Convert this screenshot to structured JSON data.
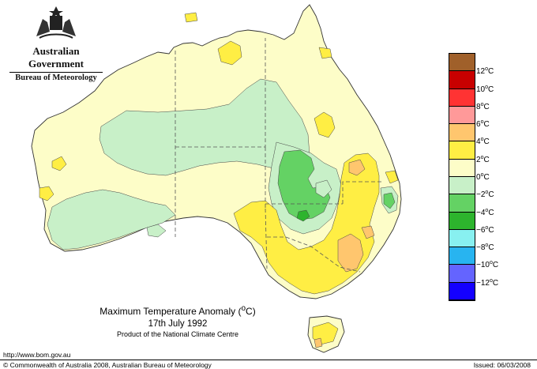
{
  "header": {
    "government": "Australian Government",
    "agency": "Bureau of Meteorology"
  },
  "title": {
    "main": "Maximum Temperature Anomaly (",
    "unit": "o",
    "unit_suffix": "C)",
    "date": "17th July 1992",
    "product": "Product of the National Climate Centre"
  },
  "legend": {
    "colors": [
      "#a0602a",
      "#c80000",
      "#ff3333",
      "#ff9999",
      "#ffc66e",
      "#ffee44",
      "#fdfdc8",
      "#c8f0c8",
      "#64d264",
      "#2db42d",
      "#88f0f0",
      "#28b4f0",
      "#6464ff",
      "#1400ff"
    ],
    "labels": [
      {
        "value": "12",
        "unit": "o",
        "suffix": "C"
      },
      {
        "value": "10",
        "unit": "o",
        "suffix": "C"
      },
      {
        "value": "8",
        "unit": "o",
        "suffix": "C"
      },
      {
        "value": "6",
        "unit": "o",
        "suffix": "C"
      },
      {
        "value": "4",
        "unit": "o",
        "suffix": "C"
      },
      {
        "value": "2",
        "unit": "o",
        "suffix": "C"
      },
      {
        "value": "0",
        "unit": "o",
        "suffix": "C"
      },
      {
        "value": "−2",
        "unit": "o",
        "suffix": "C"
      },
      {
        "value": "−4",
        "unit": "o",
        "suffix": "C"
      },
      {
        "value": "−6",
        "unit": "o",
        "suffix": "C"
      },
      {
        "value": "−8",
        "unit": "o",
        "suffix": "C"
      },
      {
        "value": "−10",
        "unit": "o",
        "suffix": "C"
      },
      {
        "value": "−12",
        "unit": "o",
        "suffix": "C"
      }
    ]
  },
  "footer": {
    "url": "http://www.bom.gov.au",
    "copyright": "© Commonwealth of Australia 2008, Australian Bureau of Meteorology",
    "issued": "Issued: 06/03/2008"
  },
  "map_colors": {
    "base": "#fdfdc8",
    "cool": "#c8f0c8",
    "cold": "#64d264",
    "colder": "#2db42d",
    "warm": "#ffee44",
    "warmer": "#ffc66e",
    "outline": "#333333"
  }
}
